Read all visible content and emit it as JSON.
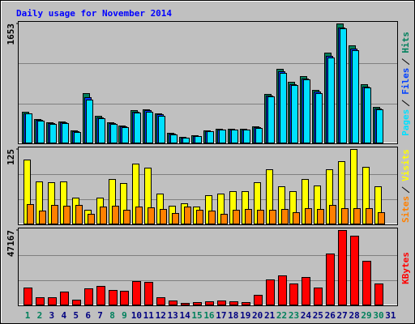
{
  "title": "Daily usage for November 2014",
  "chart_data": [
    {
      "type": "bar",
      "ylim": [
        0,
        1653
      ],
      "yticks": [
        1653
      ],
      "series": [
        {
          "name": "Hits",
          "color": "#00805c",
          "values": [
            427,
            326,
            281,
            292,
            169,
            686,
            371,
            281,
            236,
            450,
            461,
            405,
            135,
            79,
            101,
            169,
            191,
            191,
            191,
            225,
            674,
            1023,
            843,
            922,
            731,
            1248,
            1653,
            1349,
            809,
            495,
            null
          ]
        },
        {
          "name": "Files",
          "color": "#0040ff",
          "values": [
            410,
            312,
            268,
            280,
            160,
            625,
            352,
            268,
            225,
            430,
            445,
            388,
            126,
            72,
            94,
            160,
            182,
            182,
            182,
            214,
            650,
            990,
            815,
            890,
            705,
            1205,
            1600,
            1300,
            780,
            475,
            null
          ]
        },
        {
          "name": "Pages",
          "color": "#00e0ff",
          "values": [
            400,
            300,
            255,
            270,
            150,
            600,
            340,
            258,
            215,
            420,
            432,
            376,
            118,
            66,
            88,
            154,
            176,
            176,
            176,
            206,
            636,
            970,
            800,
            875,
            690,
            1180,
            1590,
            1285,
            765,
            460,
            null
          ]
        }
      ]
    },
    {
      "type": "bar",
      "ylim": [
        0,
        125
      ],
      "yticks": [
        125
      ],
      "series": [
        {
          "name": "Visits",
          "color": "#ffff00",
          "values": [
            107,
            71,
            69,
            71,
            44,
            23,
            44,
            75,
            68,
            101,
            94,
            50,
            30,
            34,
            29,
            48,
            50,
            54,
            54,
            69,
            91,
            63,
            54,
            75,
            64,
            91,
            105,
            125,
            95,
            63,
            null
          ]
        },
        {
          "name": "Sites",
          "color": "#ff8000",
          "values": [
            33,
            22,
            31,
            30,
            31,
            16,
            29,
            30,
            23,
            29,
            27,
            24,
            18,
            29,
            23,
            22,
            16,
            23,
            24,
            23,
            23,
            24,
            19,
            26,
            24,
            31,
            26,
            26,
            26,
            19,
            null
          ]
        }
      ]
    },
    {
      "type": "bar",
      "ylim": [
        0,
        47167
      ],
      "yticks": [
        47167
      ],
      "categories": [
        "1",
        "2",
        "3",
        "4",
        "5",
        "6",
        "7",
        "8",
        "9",
        "10",
        "11",
        "12",
        "13",
        "14",
        "15",
        "16",
        "17",
        "18",
        "19",
        "20",
        "21",
        "22",
        "23",
        "24",
        "25",
        "26",
        "27",
        "28",
        "29",
        "30",
        "31"
      ],
      "category_colors": [
        "#00805c",
        "#00805c",
        "#000080",
        "#000080",
        "#000080",
        "#000080",
        "#000080",
        "#00805c",
        "#00805c",
        "#000080",
        "#000080",
        "#000080",
        "#000080",
        "#000080",
        "#00805c",
        "#00805c",
        "#000080",
        "#000080",
        "#000080",
        "#000080",
        "#000080",
        "#00805c",
        "#00805c",
        "#000080",
        "#000080",
        "#000080",
        "#000080",
        "#000080",
        "#00805c",
        "#00805c",
        "#000080"
      ],
      "series": [
        {
          "name": "KBytes",
          "color": "#ff0000",
          "values": [
            10767,
            4614,
            4614,
            8203,
            3076,
            10254,
            11792,
            9229,
            8716,
            14868,
            14355,
            4614,
            2563,
            1025,
            1538,
            2051,
            2563,
            2051,
            1538,
            6152,
            15893,
            18457,
            13330,
            17431,
            10767,
            32299,
            47167,
            43579,
            27685,
            13330,
            null
          ]
        }
      ]
    }
  ]
}
